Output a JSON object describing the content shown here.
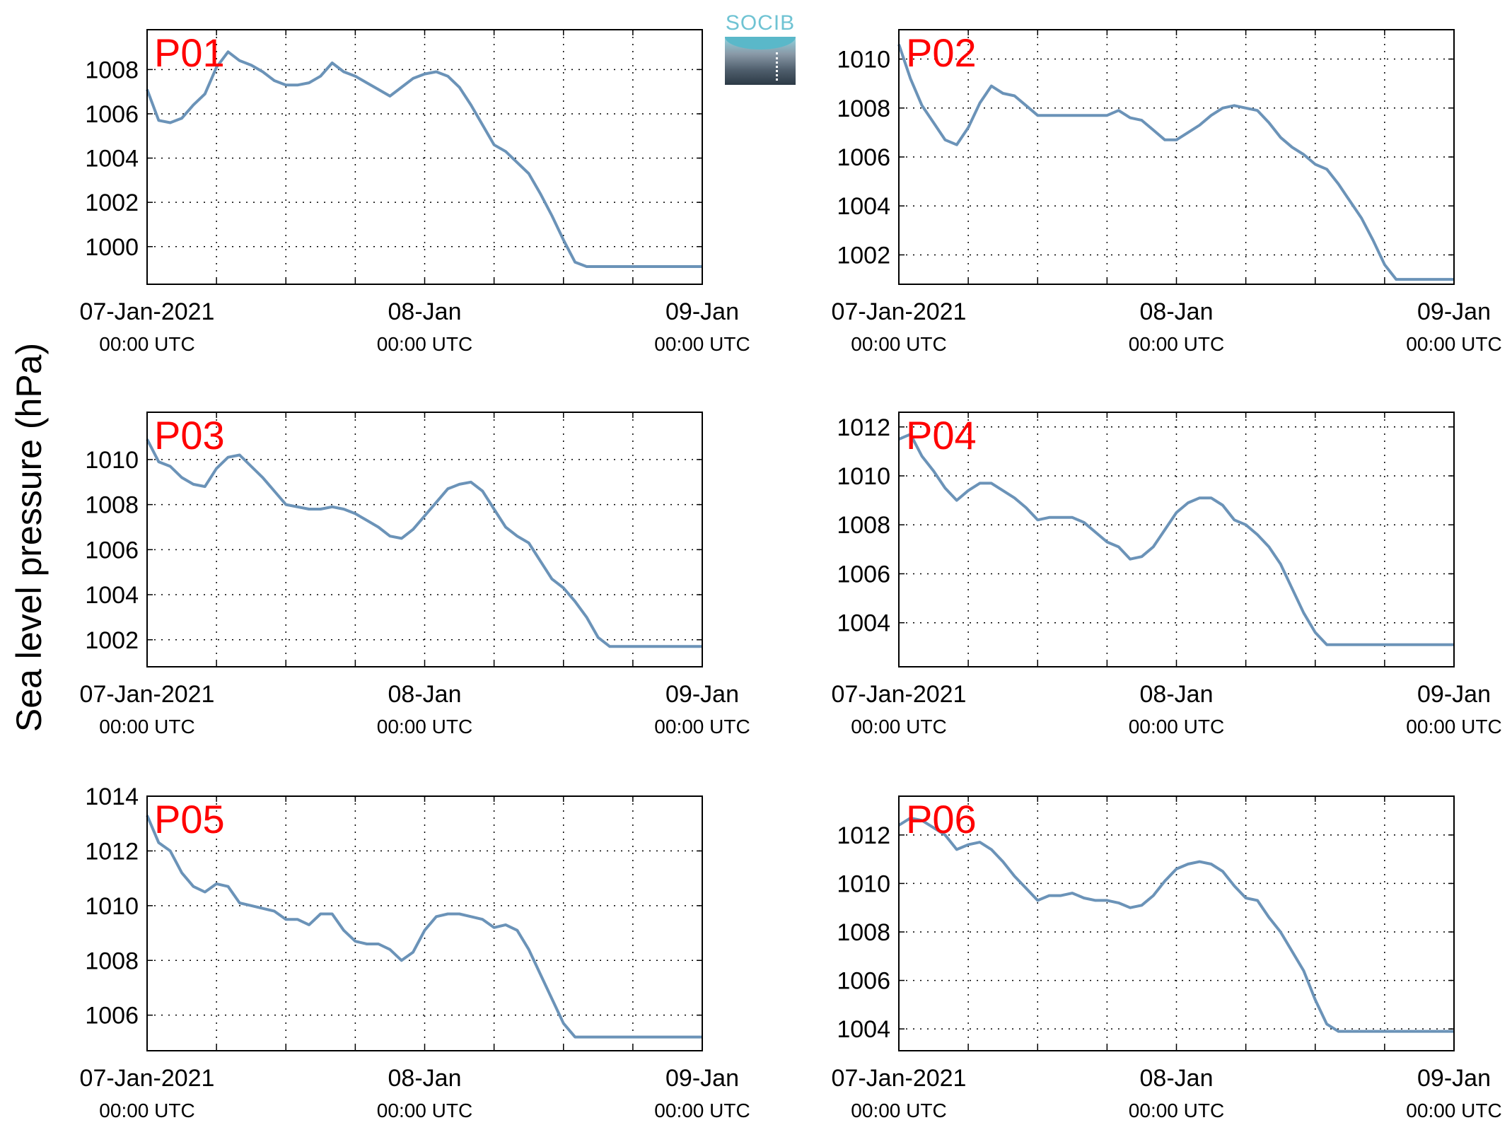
{
  "figure": {
    "ylabel": "Sea level pressure (hPa)",
    "logo_text": "SOCIB",
    "colors": {
      "line": "#6b93b8",
      "panel_label": "#ff0000",
      "axis": "#000000",
      "grid": "#000000"
    }
  },
  "chart_data": [
    {
      "type": "line",
      "title": "P01",
      "xlabels": [
        {
          "date": "07-Jan-2021",
          "time": "00:00 UTC"
        },
        {
          "date": "08-Jan",
          "time": "00:00 UTC"
        },
        {
          "date": "09-Jan",
          "time": "00:00 UTC"
        }
      ],
      "xlim": [
        0,
        48
      ],
      "ylim": [
        998.3,
        1009.8
      ],
      "yticks": [
        1000,
        1002,
        1004,
        1006,
        1008
      ],
      "x": [
        0,
        1,
        2,
        3,
        4,
        5,
        6,
        7,
        8,
        9,
        10,
        11,
        12,
        13,
        14,
        15,
        16,
        17,
        18,
        19,
        20,
        21,
        22,
        23,
        24,
        25,
        26,
        27,
        28,
        29,
        30,
        31,
        32,
        33,
        34,
        35,
        36,
        37,
        38,
        39,
        40,
        41,
        42,
        43,
        44,
        45,
        46,
        47,
        48
      ],
      "y": [
        1007.1,
        1005.7,
        1005.6,
        1005.8,
        1006.4,
        1006.9,
        1008.1,
        1008.8,
        1008.4,
        1008.2,
        1007.9,
        1007.5,
        1007.3,
        1007.3,
        1007.4,
        1007.7,
        1008.3,
        1007.9,
        1007.7,
        1007.4,
        1007.1,
        1006.8,
        1007.2,
        1007.6,
        1007.8,
        1007.9,
        1007.7,
        1007.2,
        1006.4,
        1005.5,
        1004.6,
        1004.3,
        1003.8,
        1003.3,
        1002.4,
        1001.4,
        1000.3,
        999.3,
        999.1,
        999.1,
        999.1,
        999.1,
        999.1,
        999.1,
        999.1,
        999.1,
        999.1,
        999.1,
        999.1
      ]
    },
    {
      "type": "line",
      "title": "P02",
      "xlabels": [
        {
          "date": "07-Jan-2021",
          "time": "00:00 UTC"
        },
        {
          "date": "08-Jan",
          "time": "00:00 UTC"
        },
        {
          "date": "09-Jan",
          "time": "00:00 UTC"
        }
      ],
      "xlim": [
        0,
        48
      ],
      "ylim": [
        1000.8,
        1011.2
      ],
      "yticks": [
        1002,
        1004,
        1006,
        1008,
        1010
      ],
      "x": [
        0,
        1,
        2,
        3,
        4,
        5,
        6,
        7,
        8,
        9,
        10,
        11,
        12,
        13,
        14,
        15,
        16,
        17,
        18,
        19,
        20,
        21,
        22,
        23,
        24,
        25,
        26,
        27,
        28,
        29,
        30,
        31,
        32,
        33,
        34,
        35,
        36,
        37,
        38,
        39,
        40,
        41,
        42,
        43,
        44,
        45,
        46,
        47,
        48
      ],
      "y": [
        1010.6,
        1009.2,
        1008.1,
        1007.4,
        1006.7,
        1006.5,
        1007.2,
        1008.2,
        1008.9,
        1008.6,
        1008.5,
        1008.1,
        1007.7,
        1007.7,
        1007.7,
        1007.7,
        1007.7,
        1007.7,
        1007.7,
        1007.9,
        1007.6,
        1007.5,
        1007.1,
        1006.7,
        1006.7,
        1007.0,
        1007.3,
        1007.7,
        1008.0,
        1008.1,
        1008.0,
        1007.9,
        1007.4,
        1006.8,
        1006.4,
        1006.1,
        1005.7,
        1005.5,
        1004.9,
        1004.2,
        1003.5,
        1002.6,
        1001.6,
        1001.0,
        1001.0,
        1001.0,
        1001.0,
        1001.0,
        1001.0
      ]
    },
    {
      "type": "line",
      "title": "P03",
      "xlabels": [
        {
          "date": "07-Jan-2021",
          "time": "00:00 UTC"
        },
        {
          "date": "08-Jan",
          "time": "00:00 UTC"
        },
        {
          "date": "09-Jan",
          "time": "00:00 UTC"
        }
      ],
      "xlim": [
        0,
        48
      ],
      "ylim": [
        1000.8,
        1012.1
      ],
      "yticks": [
        1002,
        1004,
        1006,
        1008,
        1010
      ],
      "x": [
        0,
        1,
        2,
        3,
        4,
        5,
        6,
        7,
        8,
        9,
        10,
        11,
        12,
        13,
        14,
        15,
        16,
        17,
        18,
        19,
        20,
        21,
        22,
        23,
        24,
        25,
        26,
        27,
        28,
        29,
        30,
        31,
        32,
        33,
        34,
        35,
        36,
        37,
        38,
        39,
        40,
        41,
        42,
        43,
        44,
        45,
        46,
        47,
        48
      ],
      "y": [
        1010.9,
        1009.9,
        1009.7,
        1009.2,
        1008.9,
        1008.8,
        1009.6,
        1010.1,
        1010.2,
        1009.7,
        1009.2,
        1008.6,
        1008.0,
        1007.9,
        1007.8,
        1007.8,
        1007.9,
        1007.8,
        1007.6,
        1007.3,
        1007.0,
        1006.6,
        1006.5,
        1006.9,
        1007.5,
        1008.1,
        1008.7,
        1008.9,
        1009.0,
        1008.6,
        1007.8,
        1007.0,
        1006.6,
        1006.3,
        1005.5,
        1004.7,
        1004.3,
        1003.7,
        1003.0,
        1002.1,
        1001.7,
        1001.7,
        1001.7,
        1001.7,
        1001.7,
        1001.7,
        1001.7,
        1001.7,
        1001.7
      ]
    },
    {
      "type": "line",
      "title": "P04",
      "xlabels": [
        {
          "date": "07-Jan-2021",
          "time": "00:00 UTC"
        },
        {
          "date": "08-Jan",
          "time": "00:00 UTC"
        },
        {
          "date": "09-Jan",
          "time": "00:00 UTC"
        }
      ],
      "xlim": [
        0,
        48
      ],
      "ylim": [
        1002.2,
        1012.6
      ],
      "yticks": [
        1004,
        1006,
        1008,
        1010,
        1012
      ],
      "x": [
        0,
        1,
        2,
        3,
        4,
        5,
        6,
        7,
        8,
        9,
        10,
        11,
        12,
        13,
        14,
        15,
        16,
        17,
        18,
        19,
        20,
        21,
        22,
        23,
        24,
        25,
        26,
        27,
        28,
        29,
        30,
        31,
        32,
        33,
        34,
        35,
        36,
        37,
        38,
        39,
        40,
        41,
        42,
        43,
        44,
        45,
        46,
        47,
        48
      ],
      "y": [
        1011.5,
        1011.7,
        1010.8,
        1010.2,
        1009.5,
        1009.0,
        1009.4,
        1009.7,
        1009.7,
        1009.4,
        1009.1,
        1008.7,
        1008.2,
        1008.3,
        1008.3,
        1008.3,
        1008.1,
        1007.7,
        1007.3,
        1007.1,
        1006.6,
        1006.7,
        1007.1,
        1007.8,
        1008.5,
        1008.9,
        1009.1,
        1009.1,
        1008.8,
        1008.2,
        1008.0,
        1007.6,
        1007.1,
        1006.4,
        1005.4,
        1004.4,
        1003.6,
        1003.1,
        1003.1,
        1003.1,
        1003.1,
        1003.1,
        1003.1,
        1003.1,
        1003.1,
        1003.1,
        1003.1,
        1003.1,
        1003.1
      ]
    },
    {
      "type": "line",
      "title": "P05",
      "xlabels": [
        {
          "date": "07-Jan-2021",
          "time": "00:00 UTC"
        },
        {
          "date": "08-Jan",
          "time": "00:00 UTC"
        },
        {
          "date": "09-Jan",
          "time": "00:00 UTC"
        }
      ],
      "xlim": [
        0,
        48
      ],
      "ylim": [
        1004.7,
        1014.0
      ],
      "yticks": [
        1006,
        1008,
        1010,
        1012,
        1014
      ],
      "x": [
        0,
        1,
        2,
        3,
        4,
        5,
        6,
        7,
        8,
        9,
        10,
        11,
        12,
        13,
        14,
        15,
        16,
        17,
        18,
        19,
        20,
        21,
        22,
        23,
        24,
        25,
        26,
        27,
        28,
        29,
        30,
        31,
        32,
        33,
        34,
        35,
        36,
        37,
        38,
        39,
        40,
        41,
        42,
        43,
        44,
        45,
        46,
        47,
        48
      ],
      "y": [
        1013.3,
        1012.3,
        1012.0,
        1011.2,
        1010.7,
        1010.5,
        1010.8,
        1010.7,
        1010.1,
        1010.0,
        1009.9,
        1009.8,
        1009.5,
        1009.5,
        1009.3,
        1009.7,
        1009.7,
        1009.1,
        1008.7,
        1008.6,
        1008.6,
        1008.4,
        1008.0,
        1008.3,
        1009.1,
        1009.6,
        1009.7,
        1009.7,
        1009.6,
        1009.5,
        1009.2,
        1009.3,
        1009.1,
        1008.4,
        1007.5,
        1006.6,
        1005.7,
        1005.2,
        1005.2,
        1005.2,
        1005.2,
        1005.2,
        1005.2,
        1005.2,
        1005.2,
        1005.2,
        1005.2,
        1005.2,
        1005.2
      ]
    },
    {
      "type": "line",
      "title": "P06",
      "xlabels": [
        {
          "date": "07-Jan-2021",
          "time": "00:00 UTC"
        },
        {
          "date": "08-Jan",
          "time": "00:00 UTC"
        },
        {
          "date": "09-Jan",
          "time": "00:00 UTC"
        }
      ],
      "xlim": [
        0,
        48
      ],
      "ylim": [
        1003.1,
        1013.6
      ],
      "yticks": [
        1004,
        1006,
        1008,
        1010,
        1012
      ],
      "x": [
        0,
        1,
        2,
        3,
        4,
        5,
        6,
        7,
        8,
        9,
        10,
        11,
        12,
        13,
        14,
        15,
        16,
        17,
        18,
        19,
        20,
        21,
        22,
        23,
        24,
        25,
        26,
        27,
        28,
        29,
        30,
        31,
        32,
        33,
        34,
        35,
        36,
        37,
        38,
        39,
        40,
        41,
        42,
        43,
        44,
        45,
        46,
        47,
        48
      ],
      "y": [
        1012.4,
        1012.7,
        1012.6,
        1012.3,
        1012.0,
        1011.4,
        1011.6,
        1011.7,
        1011.4,
        1010.9,
        1010.3,
        1009.8,
        1009.3,
        1009.5,
        1009.5,
        1009.6,
        1009.4,
        1009.3,
        1009.3,
        1009.2,
        1009.0,
        1009.1,
        1009.5,
        1010.1,
        1010.6,
        1010.8,
        1010.9,
        1010.8,
        1010.5,
        1009.9,
        1009.4,
        1009.3,
        1008.6,
        1008.0,
        1007.2,
        1006.4,
        1005.2,
        1004.2,
        1003.9,
        1003.9,
        1003.9,
        1003.9,
        1003.9,
        1003.9,
        1003.9,
        1003.9,
        1003.9,
        1003.9,
        1003.9
      ]
    }
  ]
}
